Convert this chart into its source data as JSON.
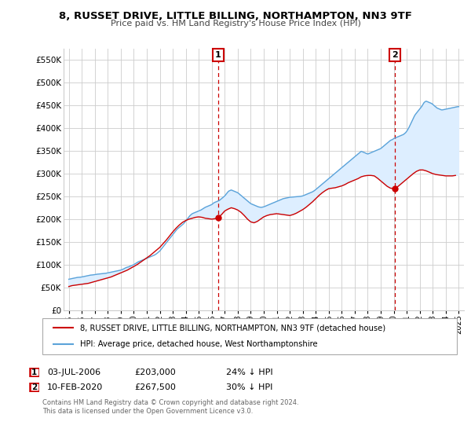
{
  "title": "8, RUSSET DRIVE, LITTLE BILLING, NORTHAMPTON, NN3 9TF",
  "subtitle": "Price paid vs. HM Land Registry's House Price Index (HPI)",
  "ylim": [
    0,
    575000
  ],
  "yticks": [
    0,
    50000,
    100000,
    150000,
    200000,
    250000,
    300000,
    350000,
    400000,
    450000,
    500000,
    550000
  ],
  "bg_color": "#ffffff",
  "grid_color": "#cccccc",
  "fill_color": "#ddeeff",
  "transaction1_date": "03-JUL-2006",
  "transaction1_price": 203000,
  "transaction1_pct": "24% ↓ HPI",
  "transaction2_date": "10-FEB-2020",
  "transaction2_price": 267500,
  "transaction2_pct": "30% ↓ HPI",
  "legend_line1": "8, RUSSET DRIVE, LITTLE BILLING, NORTHAMPTON, NN3 9TF (detached house)",
  "legend_line2": "HPI: Average price, detached house, West Northamptonshire",
  "footer": "Contains HM Land Registry data © Crown copyright and database right 2024.\nThis data is licensed under the Open Government Licence v3.0.",
  "hpi_color": "#5ba3d9",
  "price_color": "#cc0000",
  "vline_color": "#cc0000",
  "vline1_x": 2006.5,
  "vline2_x": 2020.08,
  "xlim_left": 1994.6,
  "xlim_right": 2025.4,
  "hpi_x": [
    1995.0,
    1995.083,
    1995.167,
    1995.25,
    1995.333,
    1995.417,
    1995.5,
    1995.583,
    1995.667,
    1995.75,
    1995.833,
    1995.917,
    1996.0,
    1996.083,
    1996.167,
    1996.25,
    1996.333,
    1996.417,
    1996.5,
    1996.583,
    1996.667,
    1996.75,
    1996.833,
    1996.917,
    1997.0,
    1997.083,
    1997.167,
    1997.25,
    1997.333,
    1997.417,
    1997.5,
    1997.583,
    1997.667,
    1997.75,
    1997.833,
    1997.917,
    1998.0,
    1998.083,
    1998.167,
    1998.25,
    1998.333,
    1998.417,
    1998.5,
    1998.583,
    1998.667,
    1998.75,
    1998.833,
    1998.917,
    1999.0,
    1999.083,
    1999.167,
    1999.25,
    1999.333,
    1999.417,
    1999.5,
    1999.583,
    1999.667,
    1999.75,
    1999.833,
    1999.917,
    2000.0,
    2000.083,
    2000.167,
    2000.25,
    2000.333,
    2000.417,
    2000.5,
    2000.583,
    2000.667,
    2000.75,
    2000.833,
    2000.917,
    2001.0,
    2001.083,
    2001.167,
    2001.25,
    2001.333,
    2001.417,
    2001.5,
    2001.583,
    2001.667,
    2001.75,
    2001.833,
    2001.917,
    2002.0,
    2002.083,
    2002.167,
    2002.25,
    2002.333,
    2002.417,
    2002.5,
    2002.583,
    2002.667,
    2002.75,
    2002.833,
    2002.917,
    2003.0,
    2003.083,
    2003.167,
    2003.25,
    2003.333,
    2003.417,
    2003.5,
    2003.583,
    2003.667,
    2003.75,
    2003.833,
    2003.917,
    2004.0,
    2004.083,
    2004.167,
    2004.25,
    2004.333,
    2004.417,
    2004.5,
    2004.583,
    2004.667,
    2004.75,
    2004.833,
    2004.917,
    2005.0,
    2005.083,
    2005.167,
    2005.25,
    2005.333,
    2005.417,
    2005.5,
    2005.583,
    2005.667,
    2005.75,
    2005.833,
    2005.917,
    2006.0,
    2006.083,
    2006.167,
    2006.25,
    2006.333,
    2006.417,
    2006.5,
    2006.583,
    2006.667,
    2006.75,
    2006.833,
    2006.917,
    2007.0,
    2007.083,
    2007.167,
    2007.25,
    2007.333,
    2007.417,
    2007.5,
    2007.583,
    2007.667,
    2007.75,
    2007.833,
    2007.917,
    2008.0,
    2008.083,
    2008.167,
    2008.25,
    2008.333,
    2008.417,
    2008.5,
    2008.583,
    2008.667,
    2008.75,
    2008.833,
    2008.917,
    2009.0,
    2009.083,
    2009.167,
    2009.25,
    2009.333,
    2009.417,
    2009.5,
    2009.583,
    2009.667,
    2009.75,
    2009.833,
    2009.917,
    2010.0,
    2010.083,
    2010.167,
    2010.25,
    2010.333,
    2010.417,
    2010.5,
    2010.583,
    2010.667,
    2010.75,
    2010.833,
    2010.917,
    2011.0,
    2011.083,
    2011.167,
    2011.25,
    2011.333,
    2011.417,
    2011.5,
    2011.583,
    2011.667,
    2011.75,
    2011.833,
    2011.917,
    2012.0,
    2012.083,
    2012.167,
    2012.25,
    2012.333,
    2012.417,
    2012.5,
    2012.583,
    2012.667,
    2012.75,
    2012.833,
    2012.917,
    2013.0,
    2013.083,
    2013.167,
    2013.25,
    2013.333,
    2013.417,
    2013.5,
    2013.583,
    2013.667,
    2013.75,
    2013.833,
    2013.917,
    2014.0,
    2014.083,
    2014.167,
    2014.25,
    2014.333,
    2014.417,
    2014.5,
    2014.583,
    2014.667,
    2014.75,
    2014.833,
    2014.917,
    2015.0,
    2015.083,
    2015.167,
    2015.25,
    2015.333,
    2015.417,
    2015.5,
    2015.583,
    2015.667,
    2015.75,
    2015.833,
    2015.917,
    2016.0,
    2016.083,
    2016.167,
    2016.25,
    2016.333,
    2016.417,
    2016.5,
    2016.583,
    2016.667,
    2016.75,
    2016.833,
    2016.917,
    2017.0,
    2017.083,
    2017.167,
    2017.25,
    2017.333,
    2017.417,
    2017.5,
    2017.583,
    2017.667,
    2017.75,
    2017.833,
    2017.917,
    2018.0,
    2018.083,
    2018.167,
    2018.25,
    2018.333,
    2018.417,
    2018.5,
    2018.583,
    2018.667,
    2018.75,
    2018.833,
    2018.917,
    2019.0,
    2019.083,
    2019.167,
    2019.25,
    2019.333,
    2019.417,
    2019.5,
    2019.583,
    2019.667,
    2019.75,
    2019.833,
    2019.917,
    2020.0,
    2020.083,
    2020.167,
    2020.25,
    2020.333,
    2020.417,
    2020.5,
    2020.583,
    2020.667,
    2020.75,
    2020.833,
    2020.917,
    2021.0,
    2021.083,
    2021.167,
    2021.25,
    2021.333,
    2021.417,
    2021.5,
    2021.583,
    2021.667,
    2021.75,
    2021.833,
    2021.917,
    2022.0,
    2022.083,
    2022.167,
    2022.25,
    2022.333,
    2022.417,
    2022.5,
    2022.583,
    2022.667,
    2022.75,
    2022.833,
    2022.917,
    2023.0,
    2023.083,
    2023.167,
    2023.25,
    2023.333,
    2023.417,
    2023.5,
    2023.583,
    2023.667,
    2023.75,
    2023.833,
    2023.917,
    2024.0,
    2024.083,
    2024.167,
    2024.25,
    2024.333,
    2024.417,
    2024.5,
    2024.583,
    2024.667,
    2024.75,
    2024.833,
    2024.917,
    2025.0
  ],
  "hpi_y": [
    68000,
    68500,
    69000,
    69500,
    70000,
    70500,
    71000,
    71500,
    72000,
    72200,
    72400,
    72600,
    73000,
    73500,
    74000,
    74500,
    75000,
    75500,
    76000,
    76500,
    77000,
    77200,
    77500,
    77800,
    78000,
    78500,
    79000,
    79200,
    79500,
    79800,
    80000,
    80200,
    80500,
    80800,
    81000,
    81500,
    82000,
    82500,
    83000,
    83500,
    84000,
    84500,
    85000,
    85500,
    86000,
    86500,
    87000,
    87500,
    88000,
    89000,
    90000,
    91000,
    92500,
    93500,
    94500,
    95000,
    96000,
    97000,
    98000,
    99000,
    100000,
    101500,
    103000,
    104500,
    106000,
    107000,
    108000,
    109000,
    110000,
    111000,
    112000,
    113000,
    114000,
    115000,
    116000,
    117000,
    118000,
    119000,
    120000,
    121000,
    122500,
    124000,
    126000,
    128000,
    130000,
    133000,
    136000,
    139000,
    142000,
    145000,
    148000,
    151000,
    154000,
    157000,
    160000,
    163000,
    166000,
    169000,
    172000,
    175000,
    178000,
    180000,
    182000,
    184000,
    186000,
    188000,
    190000,
    193000,
    196000,
    199000,
    202000,
    205000,
    208000,
    210000,
    212000,
    213000,
    214000,
    215000,
    216000,
    217000,
    218000,
    219000,
    220000,
    221500,
    223000,
    224500,
    226000,
    227000,
    228000,
    229000,
    230000,
    231000,
    232000,
    234000,
    236000,
    237000,
    238000,
    239000,
    240000,
    241000,
    243000,
    245000,
    247000,
    249000,
    251000,
    254000,
    257000,
    260000,
    262000,
    263000,
    264000,
    263000,
    262000,
    261000,
    260000,
    259000,
    258000,
    256000,
    254000,
    252000,
    250000,
    248000,
    246000,
    244000,
    242000,
    240000,
    238000,
    236000,
    234000,
    233000,
    232000,
    231000,
    230000,
    229000,
    228000,
    227000,
    226500,
    226000,
    226000,
    226500,
    227000,
    228000,
    229000,
    230000,
    231000,
    232000,
    233000,
    234000,
    235000,
    236000,
    237000,
    238000,
    239000,
    240000,
    241000,
    242000,
    243000,
    244000,
    245000,
    245500,
    246000,
    246500,
    247000,
    247500,
    248000,
    248200,
    248400,
    248600,
    248800,
    249000,
    249200,
    249400,
    249600,
    249800,
    250000,
    250500,
    251000,
    252000,
    253000,
    254000,
    255000,
    256000,
    257000,
    258000,
    259000,
    260000,
    261500,
    263000,
    265000,
    267000,
    269000,
    271000,
    273000,
    275000,
    277000,
    279000,
    281000,
    283000,
    285000,
    287000,
    289000,
    291000,
    293000,
    295000,
    297000,
    299000,
    301000,
    303000,
    305000,
    307000,
    309000,
    311000,
    313000,
    315000,
    317000,
    319000,
    321000,
    323000,
    325000,
    327000,
    329000,
    331000,
    333000,
    335000,
    337000,
    339000,
    341000,
    343000,
    345000,
    347000,
    349000,
    348000,
    347000,
    346000,
    345000,
    344000,
    343000,
    344000,
    345000,
    346000,
    347000,
    348000,
    349000,
    350000,
    351000,
    352000,
    353000,
    354000,
    355000,
    357000,
    359000,
    361000,
    363000,
    365000,
    367000,
    369000,
    371000,
    373000,
    374000,
    375000,
    377000,
    378000,
    379000,
    380000,
    381000,
    382000,
    383000,
    384000,
    385000,
    386000,
    388000,
    390000,
    393000,
    397000,
    401000,
    406000,
    411000,
    416000,
    421000,
    426000,
    430000,
    433000,
    436000,
    439000,
    442000,
    445000,
    448000,
    452000,
    456000,
    458000,
    459000,
    458000,
    457000,
    456000,
    455000,
    454000,
    452000,
    450000,
    448000,
    446000,
    444000,
    443000,
    442000,
    441000,
    440000,
    440000,
    440500,
    441000,
    441500,
    442000,
    442500,
    443000,
    443500,
    444000,
    444500,
    445000,
    445500,
    446000,
    446500,
    447000,
    447000
  ],
  "price_x": [
    1995.0,
    1995.25,
    1995.5,
    1995.75,
    1996.0,
    1996.25,
    1996.5,
    1996.75,
    1997.0,
    1997.25,
    1997.5,
    1997.75,
    1998.0,
    1998.25,
    1998.5,
    1998.75,
    1999.0,
    1999.25,
    1999.5,
    1999.75,
    2000.0,
    2000.25,
    2000.5,
    2000.75,
    2001.0,
    2001.25,
    2001.5,
    2001.75,
    2002.0,
    2002.25,
    2002.5,
    2002.75,
    2003.0,
    2003.25,
    2003.5,
    2003.75,
    2004.0,
    2004.25,
    2004.5,
    2004.75,
    2005.0,
    2005.25,
    2005.5,
    2005.75,
    2006.0,
    2006.25,
    2006.5,
    2006.75,
    2007.0,
    2007.25,
    2007.5,
    2007.75,
    2008.0,
    2008.25,
    2008.5,
    2008.75,
    2009.0,
    2009.25,
    2009.5,
    2009.75,
    2010.0,
    2010.25,
    2010.5,
    2010.75,
    2011.0,
    2011.25,
    2011.5,
    2011.75,
    2012.0,
    2012.25,
    2012.5,
    2012.75,
    2013.0,
    2013.25,
    2013.5,
    2013.75,
    2014.0,
    2014.25,
    2014.5,
    2014.75,
    2015.0,
    2015.25,
    2015.5,
    2015.75,
    2016.0,
    2016.25,
    2016.5,
    2016.75,
    2017.0,
    2017.25,
    2017.5,
    2017.75,
    2018.0,
    2018.25,
    2018.5,
    2018.75,
    2019.0,
    2019.25,
    2019.5,
    2019.75,
    2020.0,
    2020.25,
    2020.5,
    2020.75,
    2021.0,
    2021.25,
    2021.5,
    2021.75,
    2022.0,
    2022.25,
    2022.5,
    2022.75,
    2023.0,
    2023.25,
    2023.5,
    2023.75,
    2024.0,
    2024.25,
    2024.5,
    2024.75
  ],
  "price_y": [
    52000,
    54000,
    55000,
    56000,
    57000,
    58000,
    59000,
    61000,
    63000,
    65000,
    67000,
    69000,
    71000,
    73000,
    76000,
    79000,
    82000,
    85000,
    88000,
    92000,
    96000,
    100000,
    105000,
    110000,
    115000,
    120000,
    126000,
    132000,
    138000,
    146000,
    154000,
    163000,
    172000,
    180000,
    187000,
    193000,
    197000,
    200000,
    202000,
    204000,
    205000,
    204000,
    202000,
    201000,
    200000,
    201000,
    203000,
    210000,
    218000,
    222000,
    225000,
    223000,
    220000,
    215000,
    208000,
    200000,
    194000,
    192000,
    195000,
    200000,
    205000,
    208000,
    210000,
    211000,
    212000,
    211000,
    210000,
    209000,
    208000,
    210000,
    213000,
    217000,
    221000,
    226000,
    232000,
    238000,
    245000,
    252000,
    258000,
    263000,
    267000,
    268000,
    269000,
    271000,
    273000,
    276000,
    280000,
    283000,
    286000,
    289000,
    293000,
    295000,
    296000,
    296000,
    295000,
    290000,
    284000,
    278000,
    272000,
    268000,
    267500,
    270000,
    276000,
    282000,
    288000,
    294000,
    300000,
    305000,
    308000,
    308000,
    306000,
    303000,
    300000,
    298000,
    297000,
    296000,
    295000,
    295000,
    295000,
    296000
  ]
}
